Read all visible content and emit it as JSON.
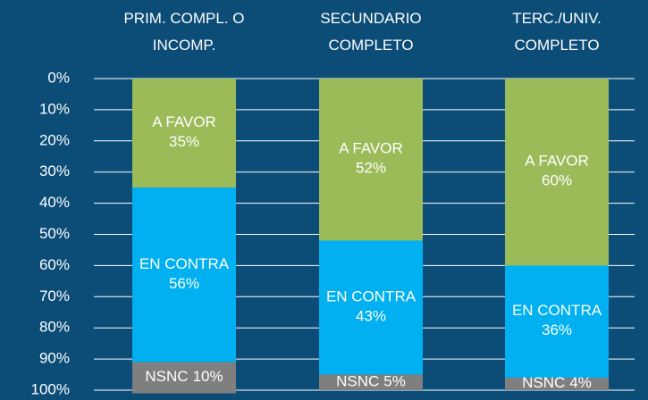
{
  "chart_data": {
    "type": "stacked_bar",
    "categories": [
      "PRIM. COMPL. O INCOMP.",
      "SECUNDARIO COMPLETO",
      "TERC./UNIV. COMPLETO"
    ],
    "series": [
      {
        "name": "A FAVOR",
        "color": "#9bbb59",
        "values": [
          35,
          52,
          60
        ],
        "value_labels": [
          "35%",
          "52%",
          "60%"
        ]
      },
      {
        "name": "EN CONTRA",
        "color": "#00b0f0",
        "values": [
          56,
          43,
          36
        ],
        "value_labels": [
          "56%",
          "43%",
          "36%"
        ]
      },
      {
        "name": "NSNC",
        "color": "#7f7f7f",
        "values": [
          10,
          5,
          4
        ],
        "value_labels": [
          "10%",
          "5%",
          "4%"
        ]
      }
    ],
    "ylim": [
      0,
      100
    ],
    "y_inverted": true,
    "yticks": [
      {
        "value": 0,
        "label": "0%"
      },
      {
        "value": 10,
        "label": "10%"
      },
      {
        "value": 20,
        "label": "20%"
      },
      {
        "value": 30,
        "label": "30%"
      },
      {
        "value": 40,
        "label": "40%"
      },
      {
        "value": 50,
        "label": "50%"
      },
      {
        "value": 60,
        "label": "60%"
      },
      {
        "value": 70,
        "label": "70%"
      },
      {
        "value": 80,
        "label": "80%"
      },
      {
        "value": 90,
        "label": "90%"
      },
      {
        "value": 100,
        "label": "100%"
      }
    ],
    "grid": true
  }
}
